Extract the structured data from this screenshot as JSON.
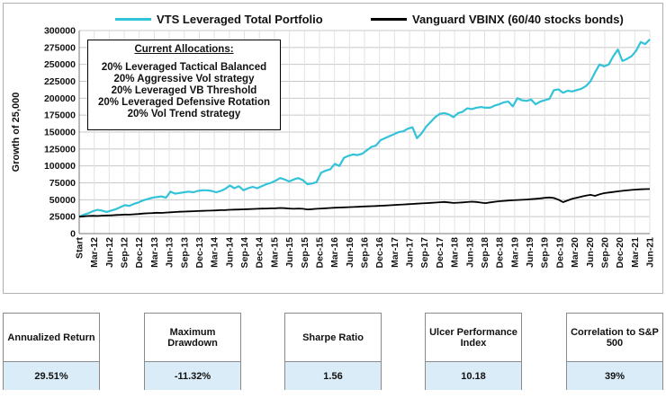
{
  "legend": [
    {
      "name": "VTS Leveraged Total Portfolio",
      "color": "#33c3d9"
    },
    {
      "name": "Vanguard VBINX  (60/40 stocks bonds)",
      "color": "#000000"
    }
  ],
  "allocations": {
    "heading": "Current Allocations:",
    "lines": [
      "20% Leveraged Tactical Balanced",
      "20% Aggressive Vol strategy",
      "20% Leveraged VB Threshold",
      "20% Leveraged Defensive Rotation",
      "20% Vol Trend strategy"
    ]
  },
  "chart_data": {
    "type": "line",
    "ylabel": "Growth of 25,000",
    "ylim": [
      0,
      300000
    ],
    "yticks": [
      "0",
      "25000",
      "50000",
      "75000",
      "100000",
      "125000",
      "150000",
      "175000",
      "200000",
      "225000",
      "250000",
      "275000",
      "300000"
    ],
    "xticks": [
      "Start",
      "Mar-12",
      "Jun-12",
      "Sep-12",
      "Dec-12",
      "Mar-13",
      "Jun-13",
      "Sep-13",
      "Dec-13",
      "Mar-14",
      "Jun-14",
      "Sep-14",
      "Dec-14",
      "Mar-15",
      "Jun-15",
      "Sep-15",
      "Dec-15",
      "Mar-16",
      "Jun-16",
      "Sep-16",
      "Dec-16",
      "Mar-17",
      "Jun-17",
      "Sep-17",
      "Dec-17",
      "Mar-18",
      "Jun-18",
      "Sep-18",
      "Dec-18",
      "Mar-19",
      "Jun-19",
      "Sep-19",
      "Dec-19",
      "Mar-20",
      "Jun-20",
      "Sep-20",
      "Dec-20",
      "Mar-21",
      "Jun-21"
    ],
    "grid": true,
    "legend_position": "top",
    "series": [
      {
        "name": "VTS Leveraged Total Portfolio",
        "color": "#33c3d9",
        "values": [
          25000,
          28000,
          30000,
          33000,
          35000,
          34000,
          32000,
          34000,
          36000,
          39000,
          42000,
          41000,
          44000,
          46000,
          49000,
          51000,
          53000,
          54000,
          55000,
          53000,
          62000,
          59000,
          60000,
          61000,
          62000,
          61000,
          63000,
          64000,
          64000,
          63000,
          61000,
          63000,
          66000,
          71000,
          67000,
          70000,
          64000,
          67000,
          69000,
          67000,
          70000,
          73000,
          75000,
          78000,
          82000,
          80000,
          77000,
          80000,
          82000,
          79000,
          73000,
          74000,
          76000,
          90000,
          93000,
          95000,
          103000,
          100000,
          112000,
          115000,
          117000,
          116000,
          118000,
          123000,
          128000,
          130000,
          138000,
          141000,
          144000,
          147000,
          150000,
          151000,
          155000,
          157000,
          141000,
          148000,
          158000,
          165000,
          172000,
          177000,
          178000,
          176000,
          172000,
          178000,
          180000,
          185000,
          184000,
          186000,
          187000,
          186000,
          186000,
          189000,
          191000,
          194000,
          195000,
          188000,
          200000,
          197000,
          196000,
          198000,
          191000,
          195000,
          197000,
          199000,
          212000,
          213000,
          208000,
          211000,
          210000,
          212000,
          214000,
          218000,
          225000,
          238000,
          250000,
          247000,
          250000,
          262000,
          272000,
          255000,
          258000,
          262000,
          270000,
          283000,
          280000,
          287000
        ]
      },
      {
        "name": "Vanguard VBINX  (60/40 stocks bonds)",
        "color": "#000000",
        "values": [
          25000,
          25500,
          26000,
          26300,
          26000,
          26500,
          26800,
          27000,
          27500,
          27800,
          28200,
          28000,
          28500,
          29000,
          29600,
          30000,
          30300,
          30800,
          30500,
          31000,
          31400,
          31800,
          32200,
          32500,
          32800,
          33100,
          33300,
          33600,
          33900,
          34000,
          34300,
          34600,
          34800,
          35200,
          35400,
          35600,
          35900,
          36100,
          36400,
          36600,
          36900,
          37100,
          37300,
          37500,
          37800,
          37600,
          37000,
          36600,
          37100,
          36600,
          35700,
          36100,
          36600,
          37000,
          37400,
          37800,
          38200,
          38500,
          38800,
          39000,
          39300,
          39600,
          39900,
          40200,
          40500,
          40800,
          41100,
          41400,
          41800,
          42200,
          42600,
          43000,
          43400,
          43800,
          44200,
          44600,
          45000,
          45400,
          45800,
          46300,
          46700,
          46000,
          45200,
          45600,
          46100,
          46600,
          47100,
          46700,
          45800,
          45000,
          46000,
          47000,
          47800,
          48300,
          48800,
          49300,
          49600,
          49900,
          50300,
          50800,
          51400,
          52100,
          52800,
          53400,
          52600,
          50000,
          46500,
          49000,
          51500,
          53000,
          54500,
          56000,
          57200,
          55800,
          58000,
          59800,
          60700,
          61500,
          62400,
          63200,
          63900,
          64500,
          65000,
          65400,
          65700,
          65900
        ]
      }
    ]
  },
  "stats": [
    {
      "label": "Annualized Return",
      "value": "29.51%"
    },
    {
      "label": "Maximum Drawdown",
      "value": "-11.32%"
    },
    {
      "label": "Sharpe Ratio",
      "value": "1.56"
    },
    {
      "label": "Ulcer Performance Index",
      "value": "10.18"
    },
    {
      "label": "Correlation to S&P 500",
      "value": "39%"
    }
  ]
}
